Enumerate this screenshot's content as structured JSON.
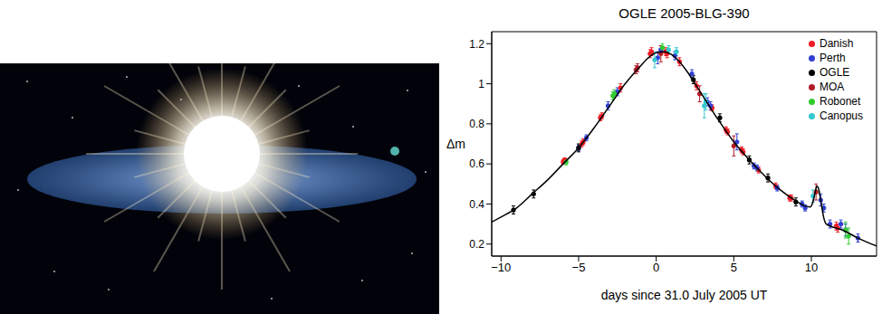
{
  "chart_data": {
    "type": "scatter",
    "title": "OGLE 2005-BLG-390",
    "x_label": "days since 31.0 July 2005 UT",
    "y_label": "Δm",
    "xlim": [
      -10.6,
      14.2
    ],
    "ylim": [
      0.14,
      1.26
    ],
    "xticks": [
      {
        "value": -10,
        "label": "−10"
      },
      {
        "value": -5,
        "label": "−5"
      },
      0,
      5,
      10
    ],
    "yticks": [
      0.2,
      0.4,
      0.6,
      0.8,
      1,
      1.2
    ],
    "legend": "upper right",
    "series": [
      {
        "name": "Danish",
        "type": "scatter",
        "marker": "circle",
        "color": "#ee1c25",
        "x": [
          -6,
          -5.9,
          -4.8,
          -4.7,
          -3.6,
          -3.5,
          -2.3,
          -0.4,
          -0.3,
          0.6,
          0.7,
          1.5,
          2.6,
          3.6,
          4.5,
          4.6,
          5.5,
          5.6,
          6.6,
          7.7,
          8.6,
          8.7,
          11.6,
          11.7
        ],
        "values": [
          0.61,
          0.62,
          0.7,
          0.71,
          0.83,
          0.84,
          0.98,
          1.15,
          1.16,
          1.16,
          1.15,
          1.11,
          0.99,
          0.88,
          0.77,
          0.76,
          0.67,
          0.66,
          0.57,
          0.49,
          0.43,
          0.43,
          0.29,
          0.28
        ],
        "errors": [
          0.01,
          0.01,
          0.015,
          0.015,
          0.015,
          0.015,
          0.02,
          0.02,
          0.02,
          0.02,
          0.02,
          0.02,
          0.02,
          0.015,
          0.015,
          0.015,
          0.015,
          0.015,
          0.015,
          0.015,
          0.015,
          0.015,
          0.02,
          0.02
        ]
      },
      {
        "name": "Perth",
        "type": "scatter",
        "marker": "circle",
        "color": "#3040d0",
        "x": [
          -5,
          -4.5,
          -3.1,
          -2.5,
          0.1,
          0.3,
          1.2,
          2.3,
          3.3,
          3.5,
          5.2,
          6.3,
          6.5,
          7.8,
          9.4,
          9.6,
          10.6,
          10.8,
          11.2,
          11.9,
          12.2,
          13
        ],
        "values": [
          0.68,
          0.73,
          0.89,
          0.96,
          1.13,
          1.17,
          1.14,
          1.05,
          0.91,
          0.89,
          0.71,
          0.59,
          0.58,
          0.48,
          0.4,
          0.38,
          0.42,
          0.38,
          0.3,
          0.3,
          0.27,
          0.23
        ],
        "errors": [
          0.015,
          0.015,
          0.02,
          0.02,
          0.03,
          0.02,
          0.02,
          0.02,
          0.02,
          0.02,
          0.04,
          0.015,
          0.015,
          0.015,
          0.015,
          0.015,
          0.03,
          0.02,
          0.02,
          0.02,
          0.03,
          0.02
        ]
      },
      {
        "name": "OGLE",
        "type": "scatter",
        "marker": "circle",
        "color": "#000000",
        "x": [
          -9.2,
          -7.9,
          -5,
          2.4,
          4.1,
          6,
          7.2,
          9
        ],
        "values": [
          0.37,
          0.45,
          0.68,
          1.02,
          0.83,
          0.62,
          0.53,
          0.41
        ],
        "errors": [
          0.02,
          0.02,
          0.02,
          0.02,
          0.02,
          0.02,
          0.02,
          0.02
        ]
      },
      {
        "name": "MOA",
        "type": "scatter",
        "marker": "circle",
        "color": "#b01c25",
        "x": [
          -1.3,
          -1.2,
          0.3,
          2.8,
          5,
          10.3
        ],
        "values": [
          1.07,
          1.08,
          1.15,
          0.95,
          0.69,
          0.46
        ],
        "errors": [
          0.02,
          0.02,
          0.04,
          0.04,
          0.05,
          0.04
        ]
      },
      {
        "name": "Robonet",
        "type": "scatter",
        "marker": "circle",
        "color": "#2fcc2f",
        "x": [
          -5.8,
          -2.8,
          -2.7,
          0.4,
          12.2,
          12.4
        ],
        "values": [
          0.61,
          0.94,
          0.95,
          1.18,
          0.27,
          0.24
        ],
        "errors": [
          0.015,
          0.02,
          0.02,
          0.02,
          0.04,
          0.04
        ]
      },
      {
        "name": "Canopus",
        "type": "scatter",
        "marker": "circle",
        "color": "#33c8d0",
        "x": [
          -0.1,
          0.8,
          1.3,
          3.1,
          3.2,
          10.1
        ],
        "values": [
          1.12,
          1.17,
          1.16,
          0.89,
          0.91,
          0.44
        ],
        "errors": [
          0.04,
          0.02,
          0.02,
          0.06,
          0.04,
          0.03
        ]
      },
      {
        "type": "line",
        "line_style": "solid",
        "color": "#000000",
        "x": [
          -10.6,
          -10,
          -9,
          -8,
          -7,
          -6,
          -5,
          -4,
          -3,
          -2,
          -1,
          -0.5,
          0,
          0.5,
          1,
          1.5,
          2,
          3,
          4,
          5,
          6,
          7,
          8,
          9,
          9.6,
          9.9,
          10.1,
          10.25,
          10.35,
          10.45,
          10.6,
          10.8,
          10.95,
          11.2,
          12,
          13,
          14.2
        ],
        "values": [
          0.31,
          0.335,
          0.38,
          0.45,
          0.52,
          0.6,
          0.68,
          0.78,
          0.89,
          1,
          1.09,
          1.13,
          1.155,
          1.16,
          1.145,
          1.11,
          1.06,
          0.94,
          0.82,
          0.71,
          0.62,
          0.54,
          0.47,
          0.415,
          0.39,
          0.385,
          0.41,
          0.46,
          0.49,
          0.48,
          0.42,
          0.33,
          0.3,
          0.29,
          0.27,
          0.23,
          0.19
        ]
      }
    ]
  }
}
